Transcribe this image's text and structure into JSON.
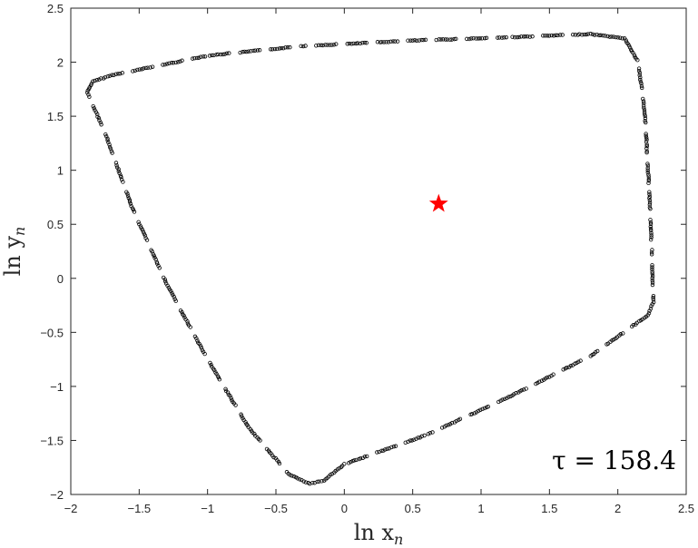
{
  "chart_data": {
    "type": "scatter",
    "xlabel": "ln x",
    "xlabel_sub": "n",
    "ylabel": "ln y",
    "ylabel_sub": "n",
    "xlim": [
      -2,
      2.5
    ],
    "ylim": [
      -2,
      2.5
    ],
    "xticks": [
      "−2",
      "−1.5",
      "−1",
      "−0.5",
      "0",
      "0.5",
      "1",
      "1.5",
      "2",
      "2.5"
    ],
    "yticks": [
      "−2",
      "−1.5",
      "−1",
      "−0.5",
      "0",
      "0.5",
      "1",
      "1.5",
      "2",
      "2.5"
    ],
    "xtick_values": [
      -2,
      -1.5,
      -1,
      -0.5,
      0,
      0.5,
      1,
      1.5,
      2,
      2.5
    ],
    "ytick_values": [
      -2,
      -1.5,
      -1,
      -0.5,
      0,
      0.5,
      1,
      1.5,
      2,
      2.5
    ],
    "grid": false,
    "annotation": "τ = 158.4",
    "annotation_position": "bottom-right",
    "marker_color": "#000000",
    "star_color": "#ff0000",
    "fixed_point": {
      "x": 0.69,
      "y": 0.69
    },
    "orbit_outline": [
      {
        "x": -1.88,
        "y": 1.72
      },
      {
        "x": -1.84,
        "y": 1.82
      },
      {
        "x": -1.7,
        "y": 1.88
      },
      {
        "x": -1.0,
        "y": 2.06
      },
      {
        "x": -0.3,
        "y": 2.15
      },
      {
        "x": 0.5,
        "y": 2.2
      },
      {
        "x": 1.2,
        "y": 2.23
      },
      {
        "x": 1.8,
        "y": 2.26
      },
      {
        "x": 2.05,
        "y": 2.22
      },
      {
        "x": 2.15,
        "y": 2.0
      },
      {
        "x": 2.2,
        "y": 1.5
      },
      {
        "x": 2.23,
        "y": 0.8
      },
      {
        "x": 2.25,
        "y": 0.2
      },
      {
        "x": 2.26,
        "y": -0.22
      },
      {
        "x": 2.22,
        "y": -0.34
      },
      {
        "x": 1.8,
        "y": -0.72
      },
      {
        "x": 1.2,
        "y": -1.1
      },
      {
        "x": 0.6,
        "y": -1.45
      },
      {
        "x": 0.0,
        "y": -1.72
      },
      {
        "x": -0.15,
        "y": -1.87
      },
      {
        "x": -0.25,
        "y": -1.9
      },
      {
        "x": -0.4,
        "y": -1.82
      },
      {
        "x": -0.7,
        "y": -1.38
      },
      {
        "x": -1.0,
        "y": -0.75
      },
      {
        "x": -1.3,
        "y": -0.05
      },
      {
        "x": -1.55,
        "y": 0.65
      },
      {
        "x": -1.75,
        "y": 1.35
      },
      {
        "x": -1.88,
        "y": 1.72
      }
    ]
  }
}
